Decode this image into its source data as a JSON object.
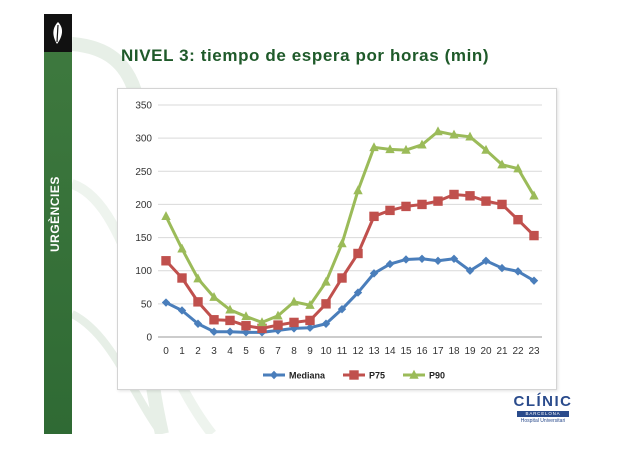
{
  "slide": {
    "title": "NIVEL 3: tiempo de espera por horas (min)",
    "side_label": "URGÈNCIES",
    "brand_name": "CLÍNIC",
    "brand_city": "BARCELONA",
    "brand_subtitle": "Hospital Universitari"
  },
  "colors": {
    "sidebar": "#3f7a3f",
    "title": "#1f5a2a",
    "mediana": "#4a7ebb",
    "p75": "#c0504d",
    "p90": "#9bbb59"
  },
  "chart_data": {
    "type": "line",
    "title": "",
    "xlabel": "",
    "ylabel": "",
    "x": [
      0,
      1,
      2,
      3,
      4,
      5,
      6,
      7,
      8,
      9,
      10,
      11,
      12,
      13,
      14,
      15,
      16,
      17,
      18,
      19,
      20,
      21,
      22,
      23
    ],
    "xtick_labels": [
      "0",
      "1",
      "2",
      "3",
      "4",
      "5",
      "6",
      "7",
      "8",
      "9",
      "10",
      "11",
      "12",
      "13",
      "14",
      "15",
      "16",
      "17",
      "18",
      "19",
      "20",
      "21",
      "22",
      "23"
    ],
    "yticks": [
      0,
      50,
      100,
      150,
      200,
      250,
      300,
      350
    ],
    "ylim": [
      0,
      350
    ],
    "grid": true,
    "legend_position": "bottom",
    "series": [
      {
        "name": "Mediana",
        "color": "#4a7ebb",
        "marker": "diamond",
        "values": [
          52,
          40,
          20,
          8,
          8,
          7,
          7,
          10,
          13,
          14,
          20,
          42,
          67,
          96,
          110,
          117,
          118,
          115,
          118,
          100,
          115,
          104,
          99,
          85
        ]
      },
      {
        "name": "P75",
        "color": "#c0504d",
        "marker": "square",
        "values": [
          115,
          89,
          53,
          26,
          25,
          17,
          13,
          18,
          22,
          25,
          50,
          89,
          126,
          182,
          191,
          197,
          200,
          205,
          215,
          213,
          205,
          200,
          177,
          153
        ]
      },
      {
        "name": "P90",
        "color": "#9bbb59",
        "marker": "triangle",
        "values": [
          182,
          133,
          88,
          60,
          41,
          31,
          22,
          32,
          53,
          48,
          83,
          141,
          221,
          286,
          283,
          282,
          290,
          310,
          305,
          302,
          282,
          260,
          254,
          213
        ]
      }
    ]
  }
}
